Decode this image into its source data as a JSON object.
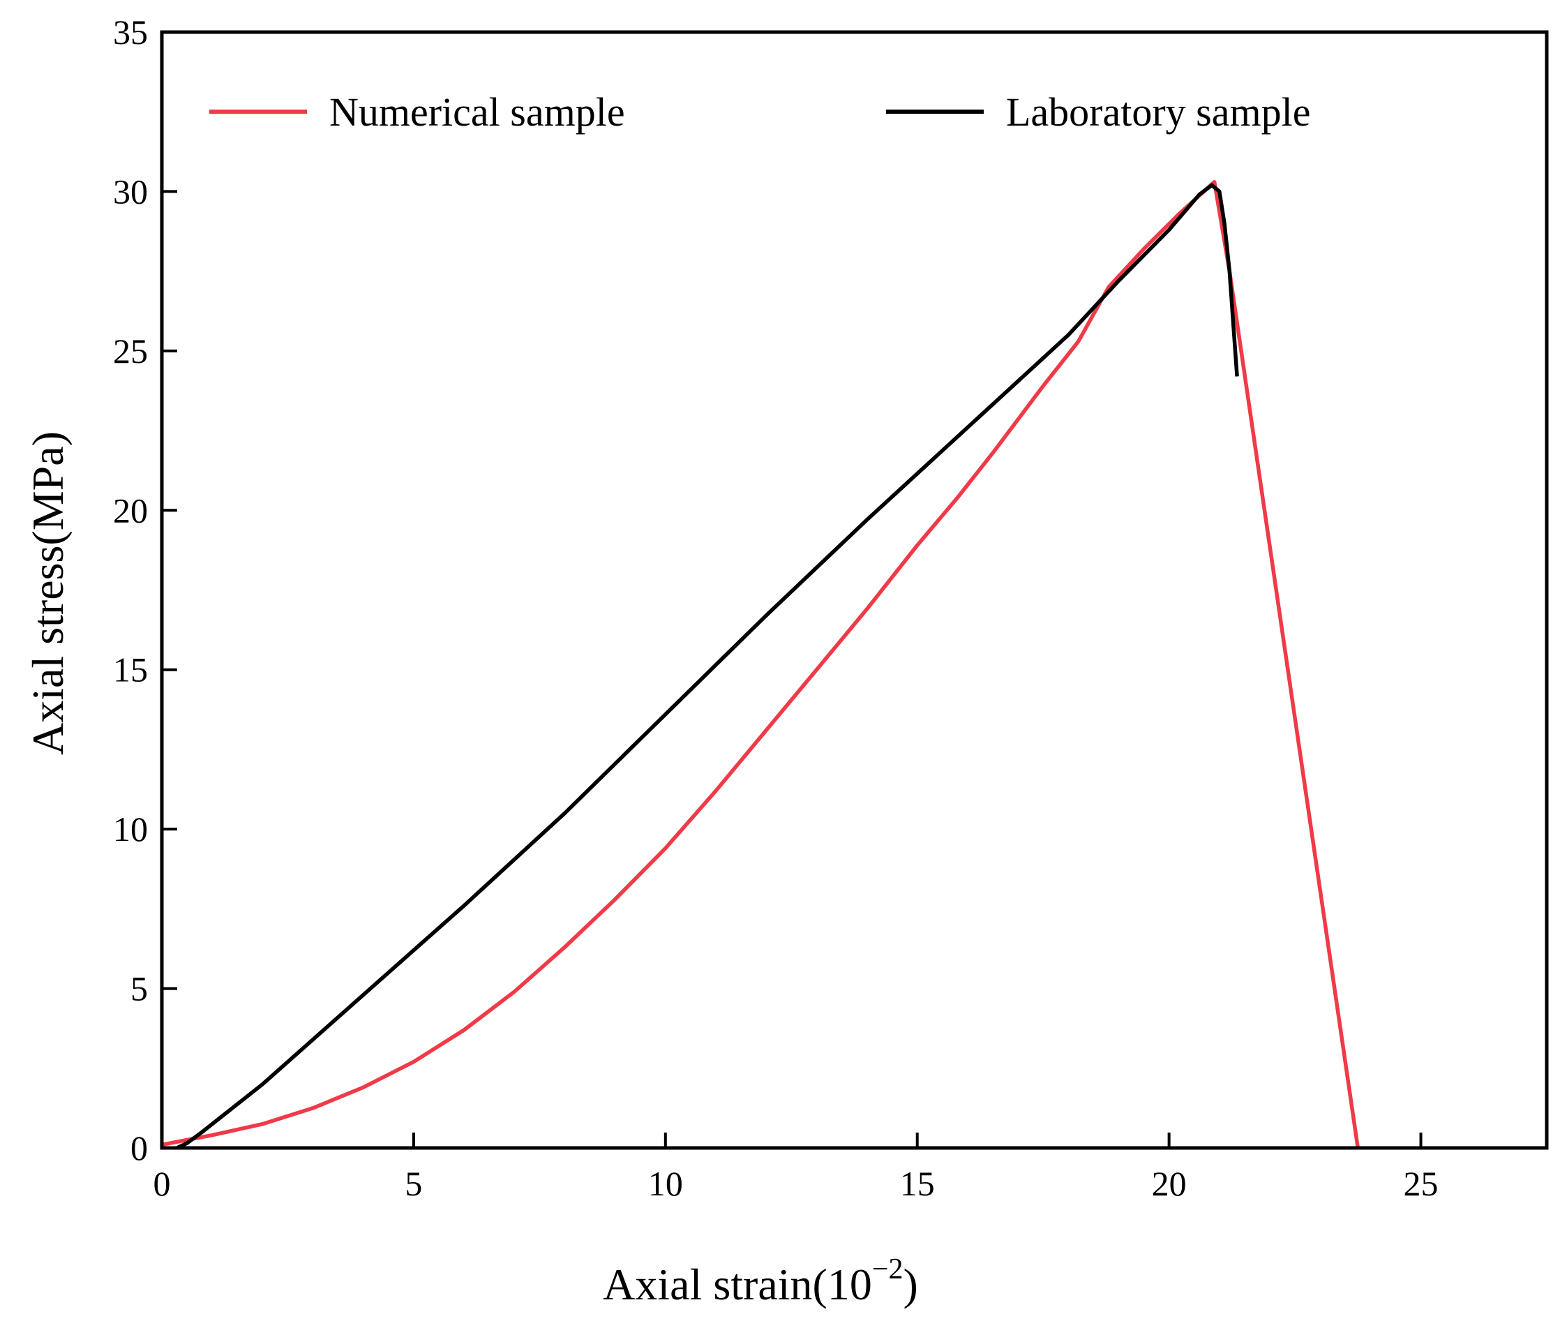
{
  "chart_data": {
    "type": "line",
    "title": "",
    "xlabel_main": "Axial strain(10",
    "xlabel_exp": "−2",
    "xlabel_close": ")",
    "ylabel": "Axial stress(MPa)",
    "xlim": [
      0,
      27.5
    ],
    "ylim": [
      0,
      35
    ],
    "xticks": [
      0,
      5,
      10,
      15,
      20,
      25
    ],
    "yticks": [
      0,
      5,
      10,
      15,
      20,
      25,
      30,
      35
    ],
    "xtick_labels": [
      "0",
      "5",
      "10",
      "15",
      "20",
      "25"
    ],
    "ytick_labels": [
      "0",
      "5",
      "10",
      "15",
      "20",
      "25",
      "30",
      "35"
    ],
    "grid": false,
    "legend_position": "top",
    "series": [
      {
        "name": "Numerical sample",
        "color": "#f03a47",
        "x": [
          0,
          1,
          2,
          3,
          4,
          5,
          6,
          7,
          8,
          9,
          10,
          11,
          12,
          13,
          14,
          15,
          15.8,
          16.5,
          17.5,
          18.2,
          18.8,
          19.5,
          20.2,
          20.9,
          21.2,
          23.75
        ],
        "y": [
          0.1,
          0.4,
          0.75,
          1.25,
          1.9,
          2.7,
          3.7,
          4.9,
          6.3,
          7.8,
          9.4,
          11.2,
          13.1,
          15.0,
          16.9,
          18.9,
          20.4,
          21.8,
          23.9,
          25.3,
          27.0,
          28.2,
          29.3,
          30.3,
          27.5,
          0
        ]
      },
      {
        "name": "Laboratory sample",
        "color": "#000000",
        "x": [
          0.3,
          0.5,
          0.8,
          1.2,
          2,
          4,
          6,
          8,
          10,
          12,
          14,
          16,
          18,
          19,
          20,
          20.6,
          20.85,
          21.0,
          21.1,
          21.2,
          21.35
        ],
        "y": [
          0,
          0.15,
          0.5,
          1.0,
          2.0,
          4.8,
          7.6,
          10.5,
          13.6,
          16.7,
          19.7,
          22.6,
          25.5,
          27.2,
          28.8,
          29.9,
          30.2,
          30.0,
          29.0,
          27.5,
          24.2
        ]
      }
    ]
  }
}
